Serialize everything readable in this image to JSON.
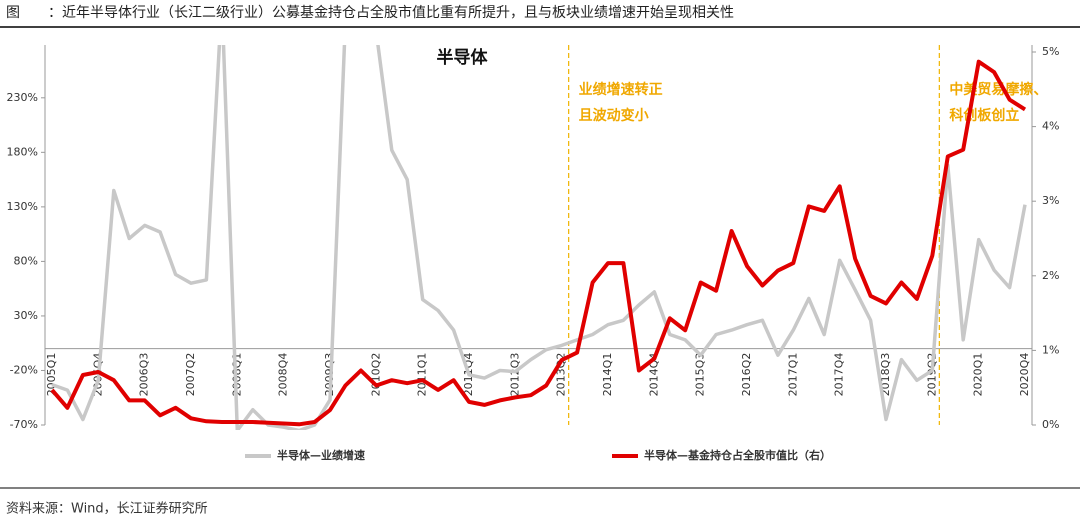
{
  "chart_data": {
    "type": "line",
    "caption": "图　　：近年半导体行业（长江二级行业）公募基金持仓占全股市值比重有所提升，且与板块业绩增速开始呈现相关性",
    "title": "半导体",
    "source": "资料来源：Wind，长江证券研究所",
    "categories": [
      "2005Q1",
      null,
      null,
      "2005Q4",
      null,
      null,
      "2006Q3",
      null,
      null,
      "2007Q2",
      null,
      null,
      "2008Q1",
      null,
      null,
      "2008Q4",
      null,
      null,
      "2009Q3",
      null,
      null,
      "2010Q2",
      null,
      null,
      "2011Q1",
      null,
      null,
      "2011Q4",
      null,
      null,
      "2012Q3",
      null,
      null,
      "2013Q2",
      null,
      null,
      "2014Q1",
      null,
      null,
      "2014Q4",
      null,
      null,
      "2015Q3",
      null,
      null,
      "2016Q2",
      null,
      null,
      "2017Q1",
      null,
      null,
      "2017Q4",
      null,
      null,
      "2018Q3",
      null,
      null,
      "2019Q2",
      null,
      null,
      "2020Q1",
      null,
      null,
      "2020Q4"
    ],
    "series": [
      {
        "name": "半导体—业绩增速",
        "color": "#c8c8c8",
        "values": [
          -33,
          -38,
          -65,
          -29,
          145,
          101,
          113,
          107,
          68,
          60,
          63,
          320,
          -75,
          -56,
          -70,
          -72,
          -75,
          -70,
          -47,
          300,
          300,
          290,
          182,
          155,
          45,
          35,
          17,
          -24,
          -27,
          -20,
          -21,
          -10,
          -1,
          3,
          8,
          13,
          22,
          26,
          40,
          52,
          13,
          8,
          -6,
          13,
          17,
          22,
          26,
          -6,
          17,
          46,
          13,
          81,
          54,
          26,
          -65,
          -10,
          -29,
          -20,
          168,
          8,
          100,
          72,
          56,
          132
        ]
      },
      {
        "name": "半导体—基金持仓占全股市值比（右）",
        "color": "#e00000",
        "axis": "y2",
        "values": [
          0.47,
          0.23,
          0.67,
          0.71,
          0.6,
          0.33,
          0.33,
          0.13,
          0.23,
          0.09,
          0.05,
          0.04,
          0.04,
          0.04,
          0.03,
          0.02,
          0.01,
          0.04,
          0.2,
          0.53,
          0.73,
          0.53,
          0.6,
          0.56,
          0.6,
          0.47,
          0.6,
          0.31,
          0.27,
          0.33,
          0.37,
          0.4,
          0.53,
          0.87,
          0.97,
          1.91,
          2.17,
          2.17,
          0.73,
          0.89,
          1.43,
          1.27,
          1.91,
          1.8,
          2.6,
          2.13,
          1.87,
          2.07,
          2.17,
          2.93,
          2.87,
          3.2,
          2.23,
          1.73,
          1.63,
          1.91,
          1.69,
          2.27,
          3.6,
          3.69,
          4.87,
          4.73,
          4.36,
          4.23
        ]
      }
    ],
    "ylim": [
      -70,
      272
    ],
    "yticks": [
      {
        "value": -70,
        "label": "-70%"
      },
      {
        "value": -20,
        "label": "-20%"
      },
      {
        "value": 30,
        "label": "30%"
      },
      {
        "value": 80,
        "label": "80%"
      },
      {
        "value": 130,
        "label": "130%"
      },
      {
        "value": 180,
        "label": "180%"
      },
      {
        "value": 230,
        "label": "230%"
      }
    ],
    "y2lim": [
      0,
      5
    ],
    "y2ticks": [
      {
        "value": 0,
        "label": "0%"
      },
      {
        "value": 1,
        "label": "1%"
      },
      {
        "value": 2,
        "label": "2%"
      },
      {
        "value": 3,
        "label": "3%"
      },
      {
        "value": 4,
        "label": "4%"
      },
      {
        "value": 5,
        "label": "5%"
      }
    ],
    "annotations": [
      {
        "x": "2013Q2",
        "lines": [
          "业绩增速转正",
          "且波动变小"
        ]
      },
      {
        "x": "2019Q2",
        "lines": [
          "中美贸易摩擦、",
          "科创板创立"
        ]
      }
    ]
  }
}
